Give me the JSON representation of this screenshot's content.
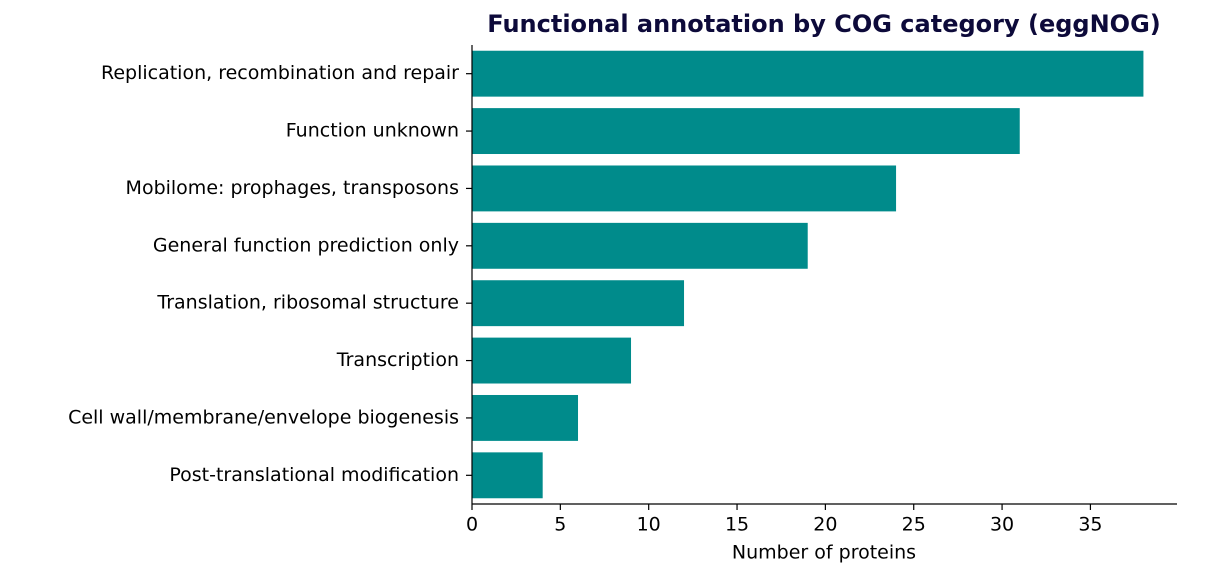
{
  "chart_data": {
    "type": "barh",
    "title": "Functional annotation by COG category (eggNOG)",
    "x_label": "Number of proteins",
    "categories": [
      "Replication, recombination and repair",
      "Function unknown",
      "Mobilome: prophages, transposons",
      "General function prediction only",
      "Translation, ribosomal structure",
      "Transcription",
      "Cell wall/membrane/envelope biogenesis",
      "Post-translational modification"
    ],
    "values": [
      38,
      31,
      24,
      19,
      12,
      9,
      6,
      4
    ],
    "color": "#008b8b",
    "xlim": [
      0,
      39.9
    ],
    "xticks": [
      0,
      5,
      10,
      15,
      20,
      25,
      30,
      35
    ],
    "grid": false
  }
}
